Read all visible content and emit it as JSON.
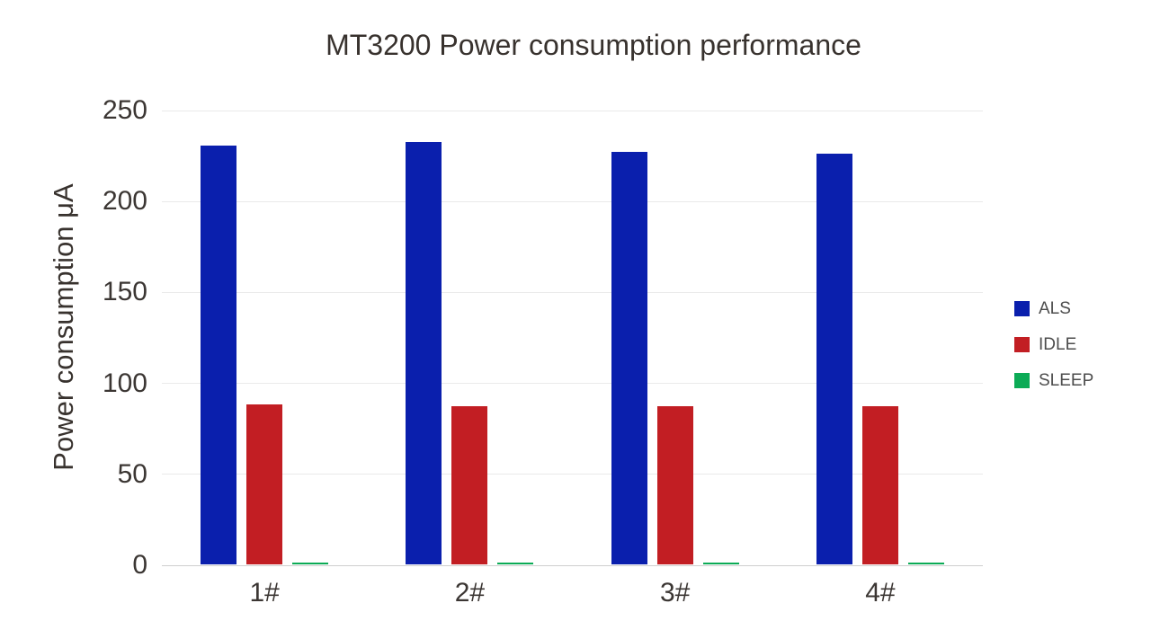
{
  "chart_data": {
    "type": "bar",
    "title": "MT3200 Power consumption performance",
    "xlabel": "",
    "ylabel": "Power consumption μA",
    "categories": [
      "1#",
      "2#",
      "3#",
      "4#"
    ],
    "series": [
      {
        "name": "ALS",
        "color": "#0a1fad",
        "values": [
          230,
          232,
          227,
          226
        ]
      },
      {
        "name": "IDLE",
        "color": "#c21e23",
        "values": [
          88,
          87,
          87,
          87
        ]
      },
      {
        "name": "SLEEP",
        "color": "#0cab56",
        "values": [
          1,
          1,
          1,
          1
        ]
      }
    ],
    "ylim": [
      0,
      250
    ],
    "yticks": [
      0,
      50,
      100,
      150,
      200,
      250
    ],
    "grid": true,
    "legend_position": "right-middle",
    "background_color": "#ffffff",
    "gridline_color": "#eaeaea",
    "axis_line_color": "#cfcfcf",
    "text_color": "#3b3633"
  }
}
